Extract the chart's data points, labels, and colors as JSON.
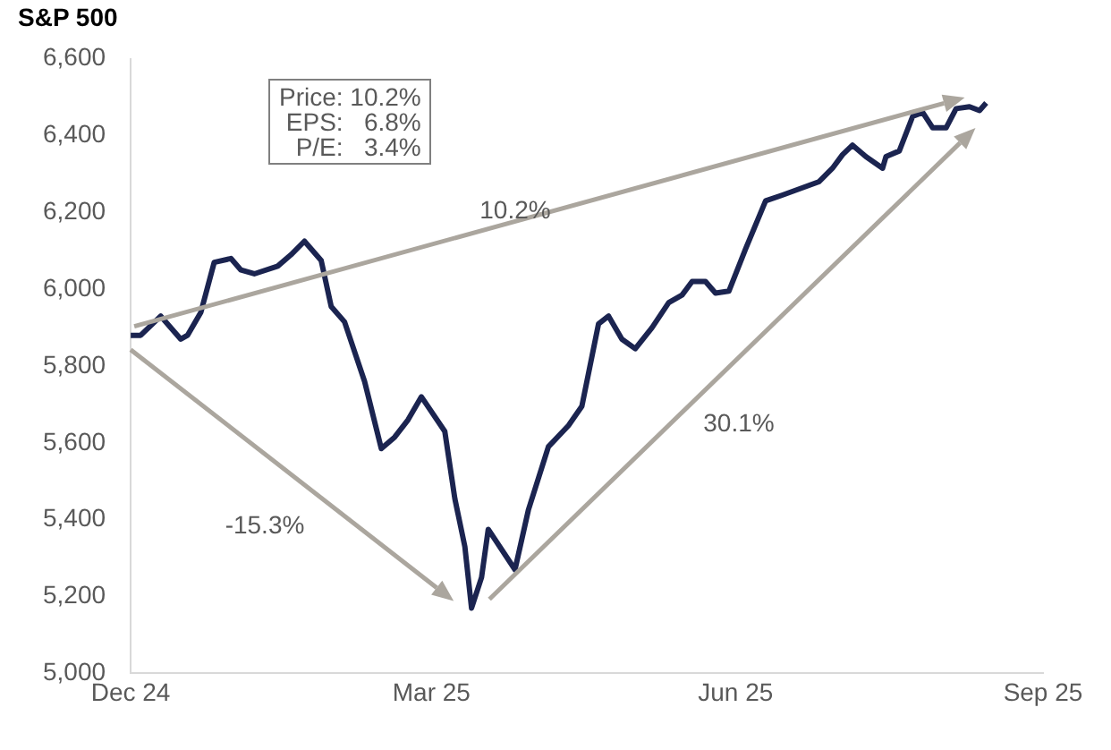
{
  "chart_data": {
    "type": "line",
    "title": "S&P 500",
    "x": [
      "2024-12-31",
      "2025-01-03",
      "2025-01-09",
      "2025-01-15",
      "2025-01-17",
      "2025-01-21",
      "2025-01-25",
      "2025-01-30",
      "2025-02-02",
      "2025-02-06",
      "2025-02-13",
      "2025-02-17",
      "2025-02-21",
      "2025-02-26",
      "2025-03-01",
      "2025-03-05",
      "2025-03-11",
      "2025-03-16",
      "2025-03-20",
      "2025-03-24",
      "2025-03-28",
      "2025-04-04",
      "2025-04-07",
      "2025-04-10",
      "2025-04-12",
      "2025-04-15",
      "2025-04-17",
      "2025-04-25",
      "2025-04-29",
      "2025-05-05",
      "2025-05-11",
      "2025-05-15",
      "2025-05-20",
      "2025-05-23",
      "2025-05-27",
      "2025-05-31",
      "2025-06-05",
      "2025-06-10",
      "2025-06-14",
      "2025-06-17",
      "2025-06-21",
      "2025-06-24",
      "2025-06-28",
      "2025-07-03",
      "2025-07-09",
      "2025-07-14",
      "2025-07-25",
      "2025-07-29",
      "2025-08-01",
      "2025-08-04",
      "2025-08-08",
      "2025-08-13",
      "2025-08-14",
      "2025-08-18",
      "2025-08-22",
      "2025-08-25",
      "2025-08-28",
      "2025-09-01",
      "2025-09-04",
      "2025-09-08",
      "2025-09-11",
      "2025-09-13"
    ],
    "series": [
      {
        "color": "#1b2450",
        "values": [
          5880,
          5880,
          5930,
          5870,
          5880,
          5940,
          6070,
          6080,
          6050,
          6040,
          6060,
          6090,
          6125,
          6075,
          5955,
          5915,
          5760,
          5585,
          5615,
          5660,
          5720,
          5630,
          5455,
          5330,
          5170,
          5250,
          5375,
          5270,
          5425,
          5590,
          5645,
          5695,
          5910,
          5930,
          5870,
          5845,
          5900,
          5965,
          5985,
          6020,
          6020,
          5990,
          5995,
          6105,
          6230,
          6245,
          6280,
          6315,
          6350,
          6375,
          6345,
          6315,
          6345,
          6360,
          6450,
          6460,
          6420,
          6420,
          6470,
          6475,
          6465,
          6485
        ]
      }
    ],
    "xlim": [
      "2024-12-31",
      "2025-09-30"
    ],
    "xticks": [
      {
        "value": "2024-12-31",
        "label": "Dec 24"
      },
      {
        "value": "2025-03-31",
        "label": "Mar 25"
      },
      {
        "value": "2025-06-30",
        "label": "Jun 25"
      },
      {
        "value": "2025-09-30",
        "label": "Sep 25"
      }
    ],
    "ylim": [
      5000,
      6600
    ],
    "yticks": [
      {
        "value": 5000,
        "label": "5,000"
      },
      {
        "value": 5200,
        "label": "5,200"
      },
      {
        "value": 5400,
        "label": "5,400"
      },
      {
        "value": 5600,
        "label": "5,600"
      },
      {
        "value": 5800,
        "label": "5,800"
      },
      {
        "value": 6000,
        "label": "6,000"
      },
      {
        "value": 6200,
        "label": "6,200"
      },
      {
        "value": 6400,
        "label": "6,400"
      },
      {
        "value": 6600,
        "label": "6,600"
      }
    ],
    "grid": false,
    "legend": false,
    "marker": "none",
    "line_style": "solid",
    "annotations": [
      "Price: 10.2%\nEPS:   6.8%\nP/E:   3.4%",
      "10.2%",
      "-15.3%",
      "30.1%"
    ]
  }
}
